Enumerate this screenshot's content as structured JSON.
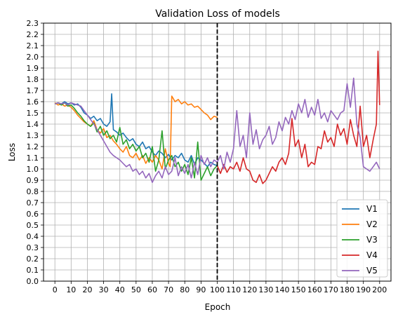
{
  "chart_data": {
    "type": "line",
    "title": "Validation Loss of models",
    "xlabel": "Epoch",
    "ylabel": "Loss",
    "xlim": [
      -7,
      207
    ],
    "ylim": [
      0.0,
      2.3
    ],
    "xticks": [
      0,
      10,
      20,
      30,
      40,
      50,
      60,
      70,
      80,
      90,
      100,
      110,
      120,
      130,
      140,
      150,
      160,
      170,
      180,
      190,
      200
    ],
    "yticks": [
      0.0,
      0.1,
      0.2,
      0.3,
      0.4,
      0.5,
      0.6,
      0.7,
      0.8,
      0.9,
      1.0,
      1.1,
      1.2,
      1.3,
      1.4,
      1.5,
      1.6,
      1.7,
      1.8,
      1.9,
      2.0,
      2.1,
      2.2,
      2.3
    ],
    "xtick_labels": [
      "0",
      "10",
      "20",
      "30",
      "40",
      "50",
      "60",
      "70",
      "80",
      "90",
      "100",
      "110",
      "120",
      "130",
      "140",
      "150",
      "160",
      "170",
      "180",
      "190",
      "200"
    ],
    "ytick_labels": [
      "0.0",
      "0.1",
      "0.2",
      "0.3",
      "0.4",
      "0.5",
      "0.6",
      "0.7",
      "0.8",
      "0.9",
      "1.0",
      "1.1",
      "1.2",
      "1.3",
      "1.4",
      "1.5",
      "1.6",
      "1.7",
      "1.8",
      "1.9",
      "2.0",
      "2.1",
      "2.2",
      "2.3"
    ],
    "grid": true,
    "legend_position": "lower right",
    "vline": {
      "x": 100,
      "style": "dashed",
      "color": "#000000"
    },
    "series": [
      {
        "name": "V1",
        "color": "#1f77b4",
        "x": [
          0,
          2,
          4,
          6,
          8,
          10,
          12,
          14,
          16,
          18,
          20,
          22,
          24,
          26,
          28,
          30,
          32,
          34,
          35,
          36,
          38,
          40,
          42,
          44,
          46,
          48,
          50,
          52,
          54,
          56,
          58,
          60,
          62,
          64,
          66,
          68,
          70,
          72,
          74,
          76,
          78,
          80,
          82,
          84,
          86,
          88,
          90,
          92,
          94,
          96,
          98,
          100
        ],
        "y": [
          1.58,
          1.59,
          1.58,
          1.6,
          1.58,
          1.59,
          1.57,
          1.58,
          1.55,
          1.5,
          1.48,
          1.45,
          1.47,
          1.43,
          1.45,
          1.4,
          1.38,
          1.42,
          1.67,
          1.35,
          1.33,
          1.3,
          1.32,
          1.28,
          1.25,
          1.27,
          1.22,
          1.2,
          1.24,
          1.18,
          1.2,
          1.15,
          1.12,
          1.16,
          1.14,
          1.1,
          1.13,
          1.08,
          1.12,
          1.1,
          1.14,
          1.08,
          1.06,
          1.12,
          1.04,
          1.1,
          1.08,
          1.05,
          1.02,
          1.06,
          1.04,
          1.03
        ]
      },
      {
        "name": "V2",
        "color": "#ff7f0e",
        "x": [
          0,
          2,
          4,
          6,
          8,
          10,
          12,
          14,
          16,
          18,
          20,
          22,
          24,
          26,
          28,
          30,
          32,
          34,
          36,
          38,
          40,
          42,
          44,
          46,
          48,
          50,
          52,
          54,
          56,
          58,
          60,
          62,
          64,
          66,
          68,
          70,
          71,
          72,
          74,
          76,
          78,
          80,
          82,
          84,
          86,
          88,
          90,
          92,
          94,
          96,
          98,
          100
        ],
        "y": [
          1.59,
          1.57,
          1.58,
          1.56,
          1.57,
          1.55,
          1.52,
          1.48,
          1.45,
          1.42,
          1.4,
          1.38,
          1.43,
          1.35,
          1.32,
          1.36,
          1.28,
          1.3,
          1.25,
          1.22,
          1.18,
          1.15,
          1.2,
          1.12,
          1.1,
          1.14,
          1.08,
          1.12,
          1.05,
          1.1,
          1.06,
          1.12,
          1.08,
          1.0,
          1.18,
          1.05,
          1.02,
          1.65,
          1.6,
          1.62,
          1.58,
          1.6,
          1.57,
          1.58,
          1.55,
          1.56,
          1.53,
          1.5,
          1.48,
          1.44,
          1.47,
          1.46
        ]
      },
      {
        "name": "V3",
        "color": "#2ca02c",
        "x": [
          0,
          2,
          4,
          6,
          8,
          10,
          12,
          14,
          16,
          18,
          20,
          22,
          24,
          26,
          28,
          30,
          32,
          34,
          36,
          38,
          40,
          42,
          44,
          46,
          48,
          50,
          52,
          54,
          56,
          58,
          60,
          62,
          64,
          66,
          68,
          70,
          72,
          74,
          76,
          78,
          80,
          82,
          84,
          86,
          88,
          90,
          92,
          94,
          96,
          98,
          100
        ],
        "y": [
          1.58,
          1.59,
          1.57,
          1.59,
          1.56,
          1.57,
          1.54,
          1.5,
          1.47,
          1.43,
          1.4,
          1.38,
          1.41,
          1.33,
          1.38,
          1.3,
          1.34,
          1.27,
          1.3,
          1.24,
          1.37,
          1.22,
          1.26,
          1.18,
          1.22,
          1.16,
          1.2,
          1.1,
          1.14,
          1.06,
          1.2,
          0.98,
          1.08,
          1.34,
          1.0,
          1.08,
          1.12,
          1.02,
          1.06,
          0.98,
          1.04,
          0.95,
          1.1,
          0.92,
          1.24,
          0.9,
          0.96,
          1.02,
          0.94,
          1.0,
          1.03
        ]
      },
      {
        "name": "V4",
        "color": "#d62728",
        "x": [
          100,
          102,
          104,
          106,
          108,
          110,
          112,
          114,
          116,
          118,
          120,
          122,
          124,
          126,
          128,
          130,
          132,
          134,
          136,
          138,
          140,
          142,
          144,
          146,
          148,
          150,
          152,
          154,
          156,
          158,
          160,
          162,
          164,
          166,
          168,
          170,
          172,
          174,
          176,
          178,
          180,
          182,
          184,
          186,
          188,
          190,
          192,
          194,
          196,
          198,
          199,
          200
        ],
        "y": [
          1.03,
          0.96,
          1.04,
          0.97,
          1.02,
          1.0,
          1.06,
          0.98,
          1.1,
          1.0,
          0.98,
          0.9,
          0.88,
          0.95,
          0.87,
          0.9,
          0.96,
          1.02,
          0.98,
          1.06,
          1.1,
          1.04,
          1.14,
          1.45,
          1.2,
          1.26,
          1.1,
          1.22,
          1.02,
          1.06,
          1.04,
          1.2,
          1.18,
          1.34,
          1.24,
          1.28,
          1.2,
          1.4,
          1.3,
          1.36,
          1.22,
          1.44,
          1.3,
          1.2,
          1.56,
          1.2,
          1.3,
          1.1,
          1.26,
          1.4,
          2.05,
          1.57
        ]
      },
      {
        "name": "V5",
        "color": "#9467bd",
        "x": [
          0,
          2,
          4,
          6,
          8,
          10,
          12,
          14,
          16,
          18,
          20,
          22,
          24,
          26,
          28,
          30,
          32,
          34,
          36,
          38,
          40,
          42,
          44,
          46,
          48,
          50,
          52,
          54,
          56,
          58,
          60,
          62,
          64,
          66,
          68,
          70,
          72,
          74,
          76,
          78,
          80,
          82,
          84,
          86,
          88,
          90,
          92,
          94,
          96,
          98,
          100,
          102,
          104,
          106,
          108,
          110,
          112,
          114,
          116,
          118,
          120,
          122,
          124,
          126,
          128,
          130,
          132,
          134,
          136,
          138,
          140,
          142,
          144,
          146,
          148,
          150,
          152,
          154,
          156,
          158,
          160,
          162,
          164,
          166,
          168,
          170,
          172,
          174,
          176,
          178,
          180,
          182,
          184,
          186,
          188,
          190,
          192,
          194,
          196,
          198,
          200
        ],
        "y": [
          1.58,
          1.59,
          1.58,
          1.59,
          1.57,
          1.59,
          1.58,
          1.57,
          1.56,
          1.52,
          1.48,
          1.44,
          1.4,
          1.35,
          1.3,
          1.25,
          1.2,
          1.15,
          1.12,
          1.1,
          1.08,
          1.05,
          1.02,
          1.04,
          0.98,
          1.0,
          0.95,
          0.98,
          0.92,
          0.96,
          0.88,
          0.94,
          0.98,
          0.92,
          1.02,
          0.95,
          0.98,
          1.1,
          0.94,
          1.02,
          0.96,
          1.04,
          0.92,
          1.06,
          0.95,
          1.12,
          1.04,
          1.1,
          1.02,
          1.08,
          1.06,
          1.12,
          1.0,
          1.15,
          1.06,
          1.18,
          1.52,
          1.2,
          1.3,
          1.1,
          1.5,
          1.22,
          1.35,
          1.18,
          1.26,
          1.3,
          1.38,
          1.22,
          1.28,
          1.42,
          1.34,
          1.46,
          1.4,
          1.52,
          1.44,
          1.58,
          1.5,
          1.62,
          1.46,
          1.55,
          1.48,
          1.62,
          1.45,
          1.5,
          1.42,
          1.52,
          1.48,
          1.44,
          1.5,
          1.52,
          1.76,
          1.55,
          1.81,
          1.4,
          1.28,
          1.02,
          1.0,
          0.98,
          1.02,
          1.06,
          1.0
        ]
      }
    ]
  }
}
